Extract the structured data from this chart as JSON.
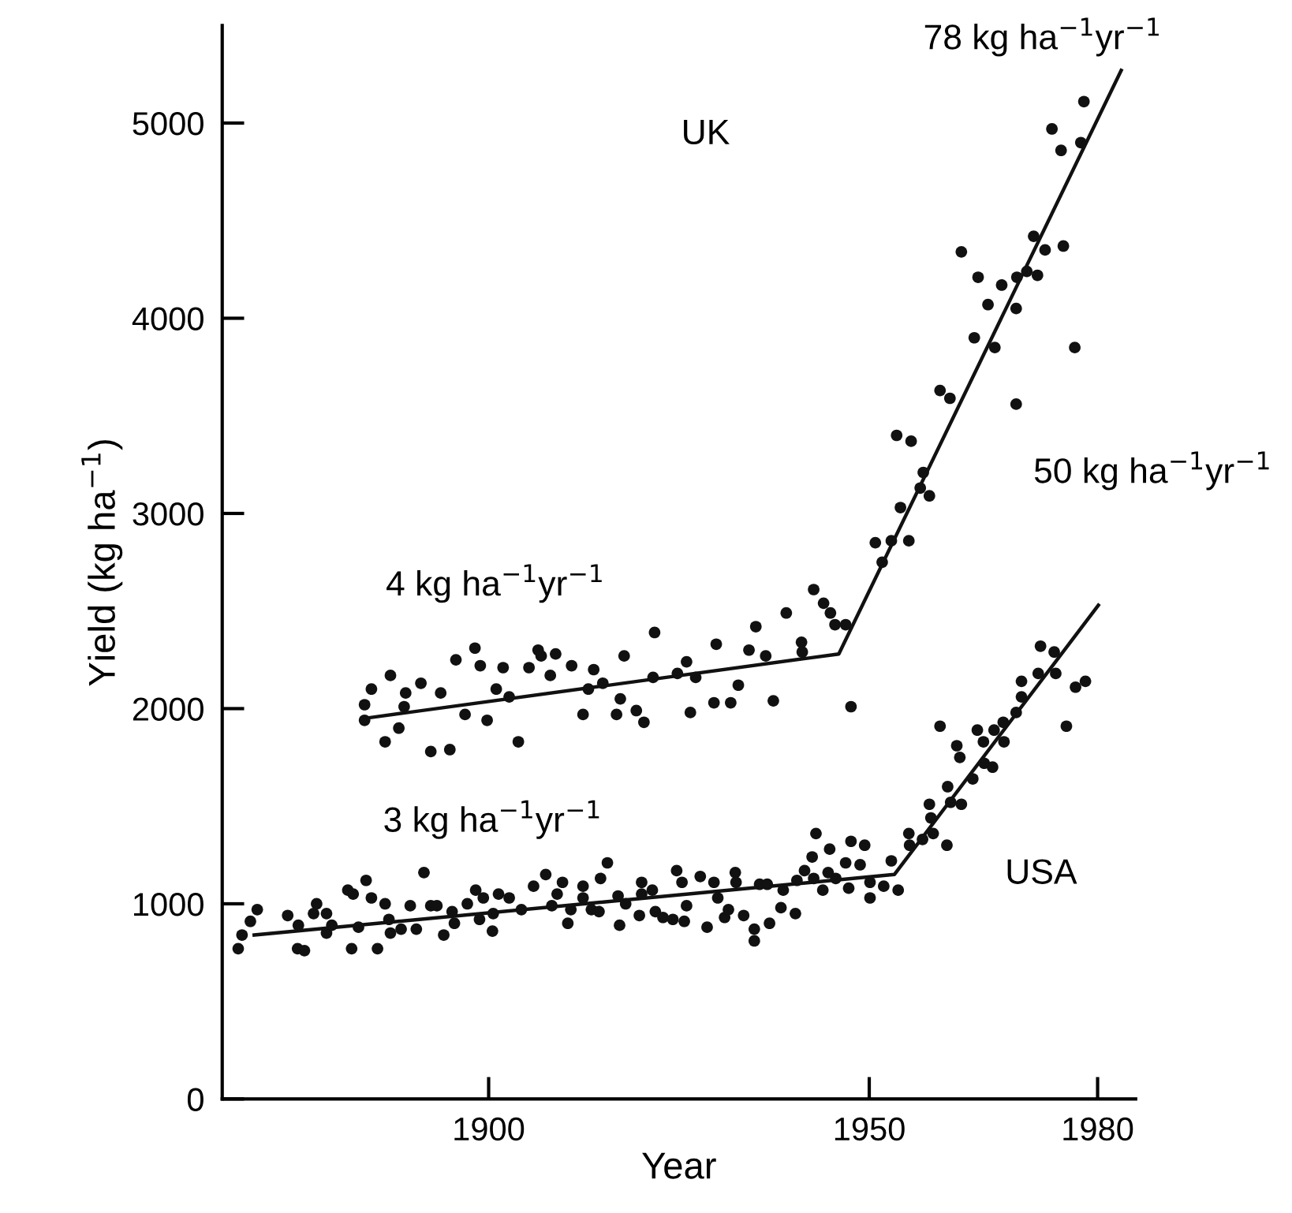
{
  "chart_data": {
    "type": "scatter",
    "xlabel": "Year",
    "ylabel": "Yield (kg ha$^{−1}$)",
    "xlim": [
      1865,
      1985
    ],
    "ylim": [
      0,
      5500
    ],
    "xticks": [
      1900,
      1950,
      1980
    ],
    "yticks": [
      0,
      1000,
      2000,
      3000,
      4000,
      5000
    ],
    "grid": false,
    "legend": false,
    "series": [
      {
        "marker": "circle",
        "color": "#111111",
        "x": [
          1883.7,
          1884.6,
          1883.7,
          1886.4,
          1887.1,
          1888.2,
          1889.1,
          1888.9,
          1891.1,
          1892.4,
          1893.7,
          1894.9,
          1895.7,
          1896.9,
          1898.2,
          1898.9,
          1899.8,
          1901.0,
          1901.9,
          1902.7,
          1903.9,
          1905.3,
          1906.5,
          1906.9,
          1908.1,
          1908.8,
          1910.9,
          1912.4,
          1913.1,
          1913.8,
          1915.0,
          1916.8,
          1917.3,
          1917.8,
          1919.4,
          1920.4,
          1921.6,
          1921.8,
          1924.8,
          1926.0,
          1926.5,
          1927.2,
          1929.6,
          1931.8,
          1929.9,
          1932.8,
          1934.2,
          1935.1,
          1936.4,
          1937.4,
          1939.1,
          1941.1,
          1941.2,
          1942.7,
          1944.0,
          1944.9,
          1945.5,
          1946.9,
          1947.6,
          1950.8,
          1951.7,
          1952.9,
          1955.2,
          1954.1,
          1956.7,
          1957.9,
          1957.1,
          1953.6,
          1955.5,
          1959.3,
          1960.6,
          1963.8,
          1966.5,
          1969.3,
          1965.6,
          1969.3,
          1967.4,
          1964.3,
          1962.1,
          1969.4,
          1970.7,
          1972.1,
          1971.6,
          1973.1,
          1975.5,
          1977.0,
          1974.0,
          1975.2,
          1977.8,
          1978.2
        ],
        "values": [
          2020,
          2100,
          1940,
          1830,
          2170,
          1900,
          2080,
          2010,
          2130,
          1780,
          2080,
          1790,
          2250,
          1970,
          2310,
          2220,
          1940,
          2100,
          2210,
          2060,
          1830,
          2210,
          2300,
          2270,
          2170,
          2280,
          2220,
          1970,
          2100,
          2200,
          2130,
          1970,
          2050,
          2270,
          1990,
          1930,
          2160,
          2390,
          2180,
          2240,
          1980,
          2160,
          2030,
          2030,
          2330,
          2120,
          2300,
          2420,
          2270,
          2040,
          2490,
          2340,
          2290,
          2610,
          2540,
          2490,
          2430,
          2430,
          2010,
          2850,
          2750,
          2860,
          2860,
          3030,
          3130,
          3090,
          3210,
          3400,
          3370,
          3630,
          3590,
          3900,
          3850,
          3560,
          4070,
          4050,
          4170,
          4210,
          4340,
          4210,
          4240,
          4220,
          4420,
          4350,
          4370,
          3850,
          4970,
          4860,
          4900,
          5110
        ]
      },
      {
        "type": "line",
        "marker": "none",
        "color": "#111111",
        "x": [
          1883.7,
          1946.0,
          1983.1
        ],
        "values": [
          1950,
          2280,
          5270
        ]
      },
      {
        "name": "USA",
        "marker": "circle",
        "color": "#111111",
        "x": [
          1867.1,
          1867.6,
          1868.7,
          1869.6,
          1873.6,
          1875.0,
          1874.9,
          1875.8,
          1877.0,
          1877.4,
          1878.7,
          1878.7,
          1879.4,
          1881.5,
          1882.2,
          1882.0,
          1882.9,
          1883.9,
          1884.6,
          1885.4,
          1886.4,
          1886.9,
          1887.1,
          1888.5,
          1889.7,
          1890.5,
          1891.5,
          1892.4,
          1893.2,
          1894.1,
          1895.2,
          1895.5,
          1897.2,
          1898.3,
          1899.3,
          1898.8,
          1900.5,
          1900.6,
          1901.3,
          1902.7,
          1904.3,
          1905.9,
          1907.5,
          1908.3,
          1909.0,
          1909.7,
          1910.4,
          1910.8,
          1912.4,
          1912.4,
          1913.5,
          1914.5,
          1914.7,
          1915.6,
          1917.0,
          1917.2,
          1918.0,
          1919.8,
          1920.1,
          1920.1,
          1921.5,
          1921.9,
          1922.9,
          1924.2,
          1924.7,
          1925.4,
          1925.7,
          1926.0,
          1927.8,
          1929.6,
          1930.1,
          1928.7,
          1931.0,
          1931.5,
          1932.4,
          1932.5,
          1933.5,
          1934.9,
          1934.9,
          1935.6,
          1936.6,
          1936.9,
          1938.4,
          1938.7,
          1940.3,
          1940.5,
          1941.5,
          1942.5,
          1942.7,
          1943.0,
          1943.9,
          1944.6,
          1944.8,
          1945.6,
          1946.9,
          1947.3,
          1947.6,
          1948.8,
          1949.4,
          1950.1,
          1950.1,
          1951.9,
          1953.8,
          1952.9,
          1955.2,
          1955.3,
          1957.0,
          1957.9,
          1958.4,
          1958.1,
          1960.2,
          1960.3,
          1960.7,
          1962.1,
          1961.5,
          1961.9,
          1959.3,
          1963.6,
          1964.2,
          1965.0,
          1965.1,
          1966.4,
          1966.2,
          1967.7,
          1967.6,
          1969.3,
          1970.0,
          1970.0,
          1972.2,
          1972.5,
          1974.3,
          1974.5,
          1975.9,
          1977.1,
          1978.4
        ],
        "values": [
          770,
          840,
          910,
          970,
          940,
          890,
          770,
          760,
          950,
          1000,
          950,
          850,
          890,
          1070,
          1050,
          770,
          880,
          1120,
          1030,
          770,
          1000,
          920,
          850,
          870,
          990,
          870,
          1160,
          990,
          990,
          840,
          960,
          900,
          1000,
          1070,
          1030,
          920,
          860,
          950,
          1050,
          1030,
          970,
          1090,
          1150,
          990,
          1050,
          1110,
          900,
          970,
          1090,
          1030,
          970,
          960,
          1130,
          1210,
          1040,
          890,
          1000,
          940,
          1110,
          1050,
          1070,
          960,
          930,
          920,
          1170,
          1110,
          910,
          990,
          1140,
          1110,
          1030,
          880,
          930,
          970,
          1160,
          1110,
          940,
          870,
          810,
          1100,
          1100,
          900,
          980,
          1070,
          950,
          1120,
          1170,
          1240,
          1130,
          1360,
          1070,
          1160,
          1280,
          1130,
          1210,
          1080,
          1320,
          1200,
          1300,
          1110,
          1030,
          1090,
          1070,
          1220,
          1360,
          1300,
          1330,
          1510,
          1360,
          1440,
          1300,
          1600,
          1520,
          1510,
          1810,
          1750,
          1910,
          1640,
          1890,
          1830,
          1720,
          1890,
          1700,
          1830,
          1930,
          1980,
          2060,
          2140,
          2180,
          2320,
          2290,
          2180,
          1910,
          2110,
          2140
        ]
      },
      {
        "type": "line",
        "marker": "none",
        "color": "#111111",
        "x": [
          1869.2,
          1953.3,
          1980.1
        ],
        "values": [
          840,
          1150,
          2530
        ]
      }
    ],
    "annotations": [
      "UK",
      "78 kg ha$^{−1}$yr$^{−1}$",
      "4 kg ha$^{−1}$yr$^{−1}$",
      "3 kg ha$^{−1}$yr$^{−1}$",
      "50 kg ha$^{−1}$yr$^{−1}$"
    ]
  }
}
